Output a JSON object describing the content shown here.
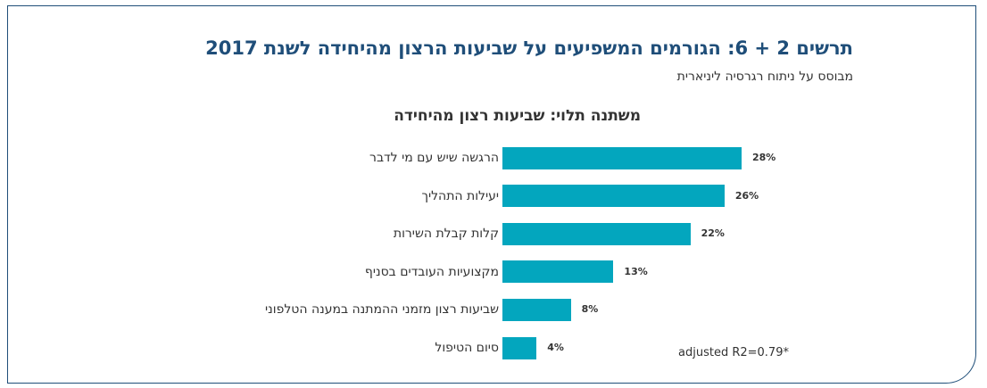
{
  "header": {
    "title": "תרשים 2 + 6: הגורמים המשפיעים על שביעות הרצון מהיחידה לשנת 2017",
    "subtitle": "מבוסס על ניתוח רגרסיה ליניארית"
  },
  "chart_data": {
    "type": "bar",
    "orientation": "horizontal",
    "title": "משתנה תלוי: שביעות רצון מהיחידה",
    "categories": [
      "הרגשה שיש עם מי לדבר",
      "יעילות התהליך",
      "קלות קבלת השירות",
      "מקצועיות העובדים בסניף",
      "שביעות רצון מזמני ההמתנה במענה הטלפוני",
      "סיום הטיפול"
    ],
    "values": [
      28,
      26,
      22,
      13,
      8,
      4
    ],
    "value_labels": [
      "28%",
      "26%",
      "22%",
      "13%",
      "8%",
      "4%"
    ],
    "bar_color": "#03a6be",
    "grid": false,
    "legend": "none",
    "annotation": "adjusted R2=0.79*"
  },
  "colors": {
    "title": "#1f4e79",
    "text": "#333333",
    "frame": "#1f4e79"
  }
}
